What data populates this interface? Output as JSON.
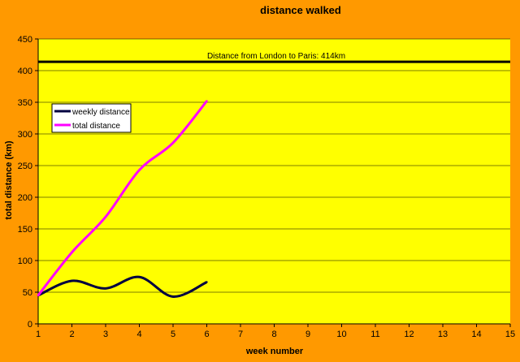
{
  "chart_data": {
    "type": "line",
    "title": "distance walked",
    "xlabel": "week number",
    "ylabel": "total distance (km)",
    "xlim": [
      1,
      15
    ],
    "ylim": [
      0,
      450
    ],
    "x_ticks": [
      1,
      2,
      3,
      4,
      5,
      6,
      7,
      8,
      9,
      10,
      11,
      12,
      13,
      14,
      15
    ],
    "y_ticks": [
      0,
      50,
      100,
      150,
      200,
      250,
      300,
      350,
      400,
      450
    ],
    "grid": "horizontal",
    "legend_position": "upper-left",
    "plot_background": "#ffff00",
    "page_background": "#ff9900",
    "series": [
      {
        "name": "weekly distance",
        "color": "#000040",
        "x": [
          1,
          2,
          3,
          4,
          5,
          6
        ],
        "values": [
          45,
          68,
          56,
          74,
          43,
          66
        ]
      },
      {
        "name": "total distance",
        "color": "#ff00ff",
        "x": [
          1,
          2,
          3,
          4,
          5,
          6
        ],
        "values": [
          45,
          113,
          169,
          243,
          286,
          352
        ]
      }
    ],
    "reference_line": {
      "value": 414,
      "label": "Distance from London to  Paris: 414km",
      "color": "#000000"
    }
  }
}
